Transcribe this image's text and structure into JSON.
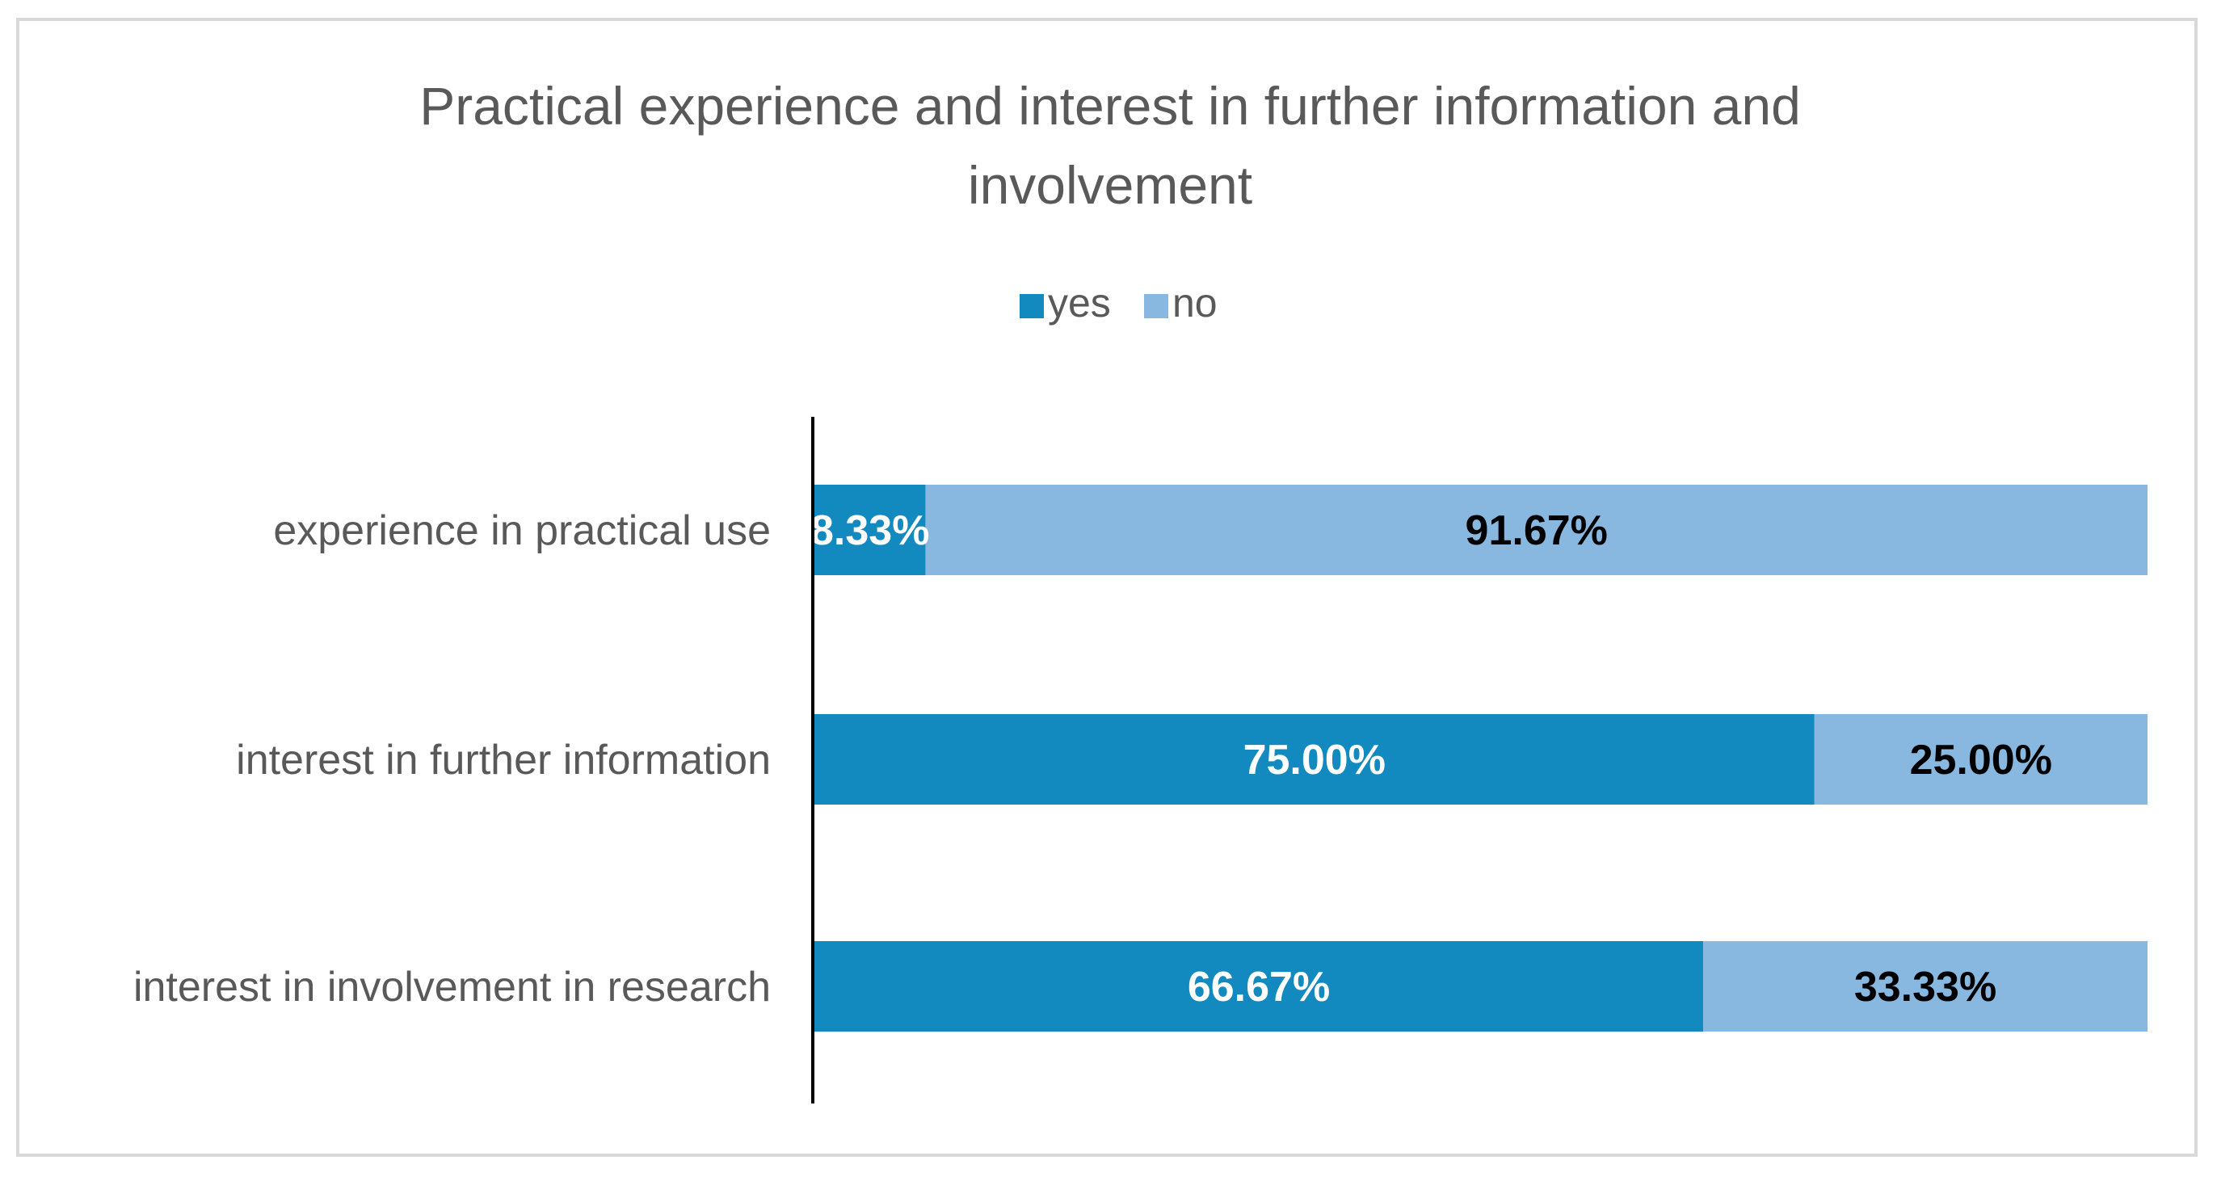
{
  "chart_data": {
    "type": "bar",
    "orientation": "horizontal",
    "stacked": true,
    "title": "Practical experience and interest in further information and involvement",
    "title_lines": [
      "Practical experience and interest in further information and",
      "involvement"
    ],
    "categories": [
      "experience in practical use",
      "interest in further information",
      "interest in involvement in research"
    ],
    "series": [
      {
        "name": "yes",
        "values": [
          8.33,
          75.0,
          66.67
        ],
        "labels": [
          "8.33%",
          "75.00%",
          "66.67%"
        ],
        "color": "#1289BF",
        "label_color": "#FFFFFF"
      },
      {
        "name": "no",
        "values": [
          91.67,
          25.0,
          33.33
        ],
        "labels": [
          "91.67%",
          "25.00%",
          "33.33%"
        ],
        "color": "#88B8E0",
        "label_color": "#000000"
      }
    ],
    "xlim": [
      0,
      100
    ],
    "legend": "top-center",
    "grid": false
  }
}
